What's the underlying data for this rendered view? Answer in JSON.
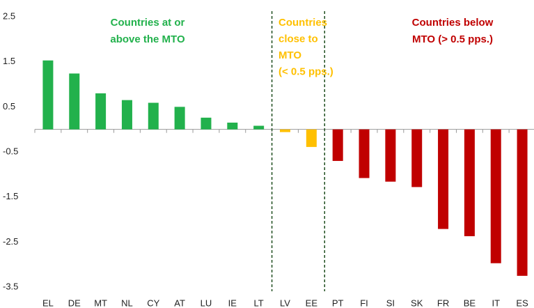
{
  "chart_data": {
    "type": "bar",
    "categories": [
      "EL",
      "DE",
      "MT",
      "NL",
      "CY",
      "AT",
      "LU",
      "IE",
      "LT",
      "LV",
      "EE",
      "PT",
      "FI",
      "SI",
      "SK",
      "FR",
      "BE",
      "IT",
      "ES"
    ],
    "values": [
      1.53,
      1.24,
      0.8,
      0.65,
      0.59,
      0.5,
      0.26,
      0.15,
      0.08,
      -0.06,
      -0.39,
      -0.7,
      -1.08,
      -1.16,
      -1.28,
      -2.21,
      -2.37,
      -2.97,
      -3.25
    ],
    "colors": [
      "#22b14c",
      "#22b14c",
      "#22b14c",
      "#22b14c",
      "#22b14c",
      "#22b14c",
      "#22b14c",
      "#22b14c",
      "#22b14c",
      "#ffc000",
      "#ffc000",
      "#c00000",
      "#c00000",
      "#c00000",
      "#c00000",
      "#c00000",
      "#c00000",
      "#c00000",
      "#c00000"
    ],
    "ylim": [
      -3.5,
      2.5
    ],
    "yticks": [
      -3.5,
      -2.5,
      -1.5,
      -0.5,
      0.5,
      1.5,
      2.5
    ],
    "annotations": [
      {
        "lines": [
          "Countries at or",
          "above the MTO"
        ],
        "color": "#22b14c"
      },
      {
        "lines": [
          "Countries",
          "close to",
          "MTO",
          "(< 0.5 pps.)"
        ],
        "color": "#ffc000"
      },
      {
        "lines": [
          "Countries  below",
          "MTO (> 0.5 pps.)"
        ],
        "color": "#c00000"
      }
    ]
  }
}
